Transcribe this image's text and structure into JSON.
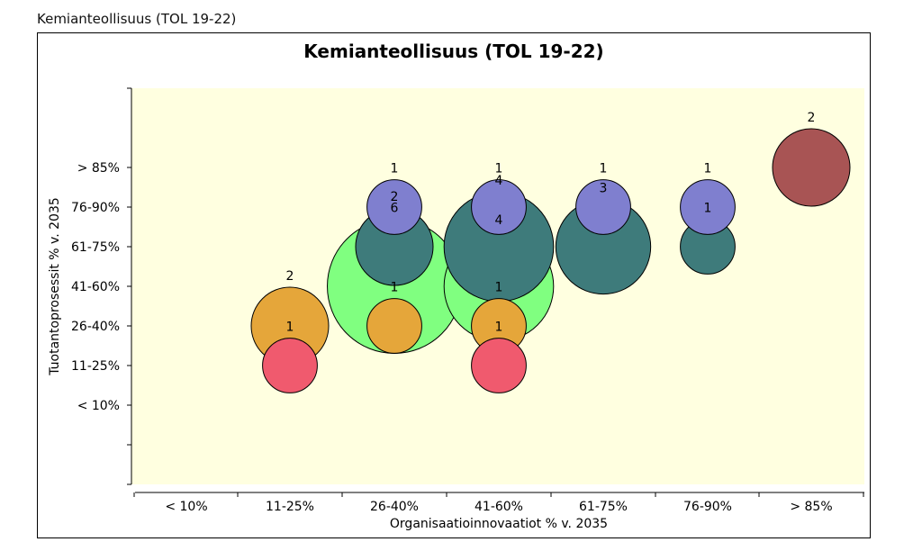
{
  "caption": "Kemianteollisuus (TOL 19-22)",
  "chart_data": {
    "type": "bubble",
    "title": "Kemianteollisuus (TOL 19-22)",
    "xlabel": "Organisaatioinnovaatiot % v. 2035",
    "ylabel": "Tuotantoprosessit % v. 2035",
    "x_categories": [
      "< 10%",
      "11-25%",
      "26-40%",
      "41-60%",
      "61-75%",
      "76-90%",
      "> 85%"
    ],
    "y_categories": [
      "< 10%",
      "11-25%",
      "26-40%",
      "41-60%",
      "61-75%",
      "76-90%",
      "> 85%"
    ],
    "grid": false,
    "colors": {
      "plot_background": "#ffffe0",
      "green": "#80ff80",
      "teal": "#3e7b7b",
      "purple": "#7f7fcf",
      "orange": "#e5a63a",
      "red": "#f05a6e",
      "darkred": "#a85454"
    },
    "bubbles": [
      {
        "x": "26-40%",
        "y": "41-60%",
        "count": 6,
        "color": "green"
      },
      {
        "x": "41-60%",
        "y": "41-60%",
        "count": 4,
        "color": "green"
      },
      {
        "x": "41-60%",
        "y": "61-75%",
        "count": 4,
        "color": "teal"
      },
      {
        "x": "61-75%",
        "y": "61-75%",
        "count": 3,
        "color": "teal"
      },
      {
        "x": "26-40%",
        "y": "61-75%",
        "count": 2,
        "color": "teal"
      },
      {
        "x": "76-90%",
        "y": "61-75%",
        "count": 1,
        "color": "teal"
      },
      {
        "x": "11-25%",
        "y": "26-40%",
        "count": 2,
        "color": "orange"
      },
      {
        "x": "26-40%",
        "y": "26-40%",
        "count": 1,
        "color": "orange"
      },
      {
        "x": "41-60%",
        "y": "26-40%",
        "count": 1,
        "color": "orange"
      },
      {
        "x": "11-25%",
        "y": "11-25%",
        "count": 1,
        "color": "red"
      },
      {
        "x": "41-60%",
        "y": "11-25%",
        "count": 1,
        "color": "red"
      },
      {
        "x": "26-40%",
        "y": "76-90%",
        "count": 1,
        "color": "purple"
      },
      {
        "x": "41-60%",
        "y": "76-90%",
        "count": 1,
        "color": "purple"
      },
      {
        "x": "61-75%",
        "y": "76-90%",
        "count": 1,
        "color": "purple"
      },
      {
        "x": "76-90%",
        "y": "76-90%",
        "count": 1,
        "color": "purple"
      },
      {
        "x": "> 85%",
        "y": "> 85%",
        "count": 2,
        "color": "darkred"
      }
    ]
  }
}
